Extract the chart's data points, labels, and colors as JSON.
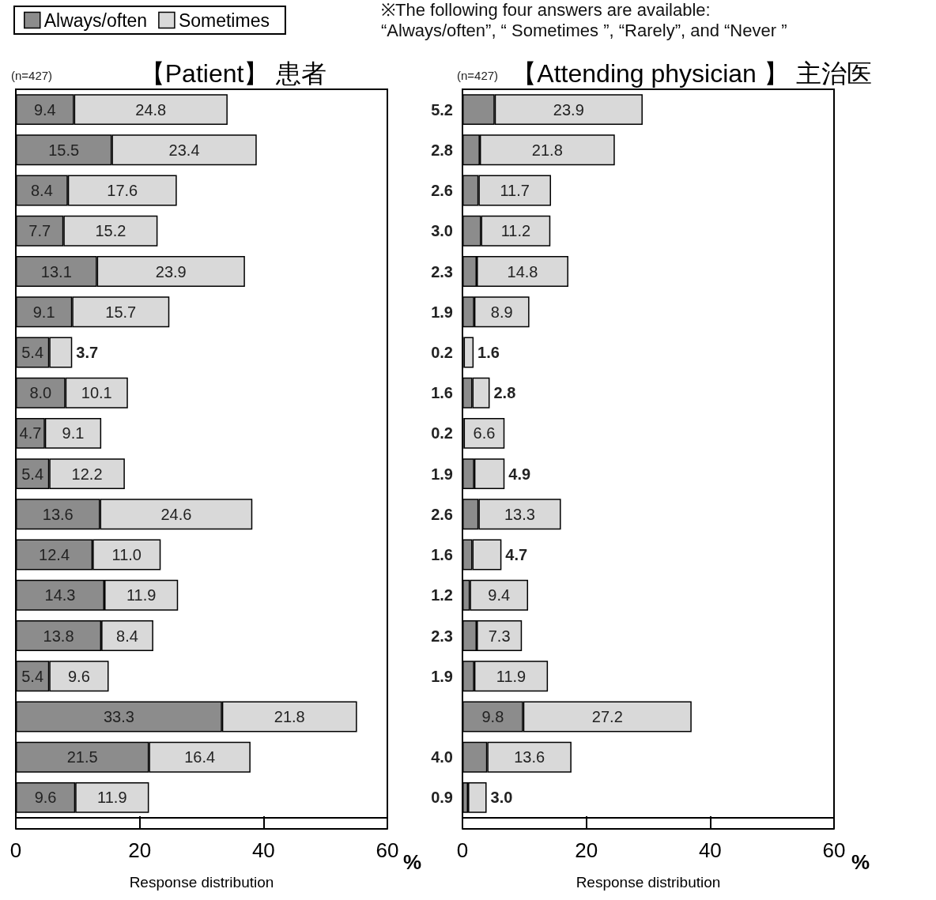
{
  "chart_data": [
    {
      "type": "bar",
      "orientation": "horizontal",
      "stacked": true,
      "title": "【Patient】 患者",
      "xlabel": "Response distribution",
      "annotations": [
        "(n=427)",
        "%",
        "※The following four answers are available:\n“Always/often”, “ Sometimes ”, “Rarely”, and “Never ”"
      ],
      "categories": [
        null,
        null,
        null,
        null,
        null,
        null,
        null,
        null,
        null,
        null,
        null,
        null,
        null,
        null,
        null,
        null,
        null,
        null
      ],
      "series": [
        {
          "name": "Always/often",
          "color": "#8c8c8c",
          "values": [
            9.4,
            15.5,
            8.4,
            7.7,
            13.1,
            9.1,
            5.4,
            8.0,
            4.7,
            5.4,
            13.6,
            12.4,
            14.3,
            13.8,
            5.4,
            33.3,
            21.5,
            9.6
          ],
          "value_labels": [
            "9.4",
            "15.5",
            "8.4",
            "7.7",
            "13.1",
            "9.1",
            "5.4",
            "8.0",
            "4.7",
            "5.4",
            "13.6",
            "12.4",
            "14.3",
            "13.8",
            "5.4",
            "33.3",
            "21.5",
            "9.6"
          ]
        },
        {
          "name": "Sometimes",
          "color": "#d9d9d9",
          "values": [
            24.8,
            23.4,
            17.6,
            15.2,
            23.9,
            15.7,
            3.7,
            10.1,
            9.1,
            12.2,
            24.6,
            11.0,
            11.9,
            8.4,
            9.6,
            21.8,
            16.4,
            11.9
          ],
          "value_labels": [
            "24.8",
            "23.4",
            "17.6",
            "15.2",
            "23.9",
            "15.7",
            "3.7",
            "10.1",
            "9.1",
            "12.2",
            "24.6",
            "11.0",
            "11.9",
            "8.4",
            "9.6",
            "21.8",
            "16.4",
            "11.9"
          ]
        }
      ],
      "xlim": [
        0,
        60
      ],
      "xticks": [
        0,
        20,
        40,
        60
      ],
      "grid": false,
      "legend": "top left",
      "tick_labels": "x"
    },
    {
      "type": "bar",
      "orientation": "horizontal",
      "stacked": true,
      "title": "【Attending physician 】 主治医",
      "xlabel": "Response distribution",
      "annotations": [
        "(n=427)",
        "%"
      ],
      "categories": [
        null,
        null,
        null,
        null,
        null,
        null,
        null,
        null,
        null,
        null,
        null,
        null,
        null,
        null,
        null,
        null,
        null,
        null
      ],
      "series": [
        {
          "color": "#8c8c8c",
          "values": [
            5.2,
            2.8,
            2.6,
            3.0,
            2.3,
            1.9,
            0.2,
            1.6,
            0.2,
            1.9,
            2.6,
            1.6,
            1.2,
            2.3,
            1.9,
            9.8,
            4.0,
            0.9
          ],
          "value_labels": [
            "5.2",
            "2.8",
            "2.6",
            "3.0",
            "2.3",
            "1.9",
            "0.2",
            "1.6",
            "0.2",
            "1.9",
            "2.6",
            "1.6",
            "1.2",
            "2.3",
            "1.9",
            "9.8",
            "4.0",
            "0.9"
          ]
        },
        {
          "color": "#d9d9d9",
          "values": [
            23.9,
            21.8,
            11.7,
            11.2,
            14.8,
            8.9,
            1.6,
            2.8,
            6.6,
            4.9,
            13.3,
            4.7,
            9.4,
            7.3,
            11.9,
            27.2,
            13.6,
            3.0
          ],
          "value_labels": [
            "23.9",
            "21.8",
            "11.7",
            "11.2",
            "14.8",
            "8.9",
            "1.6",
            "2.8",
            "6.6",
            "4.9",
            "13.3",
            "4.7",
            "9.4",
            "7.3",
            "11.9",
            "27.2",
            "13.6",
            "3.0"
          ]
        }
      ],
      "xlim": [
        0,
        60
      ],
      "xticks": [
        0,
        20,
        40,
        60
      ],
      "grid": false,
      "tick_labels": "x"
    }
  ]
}
